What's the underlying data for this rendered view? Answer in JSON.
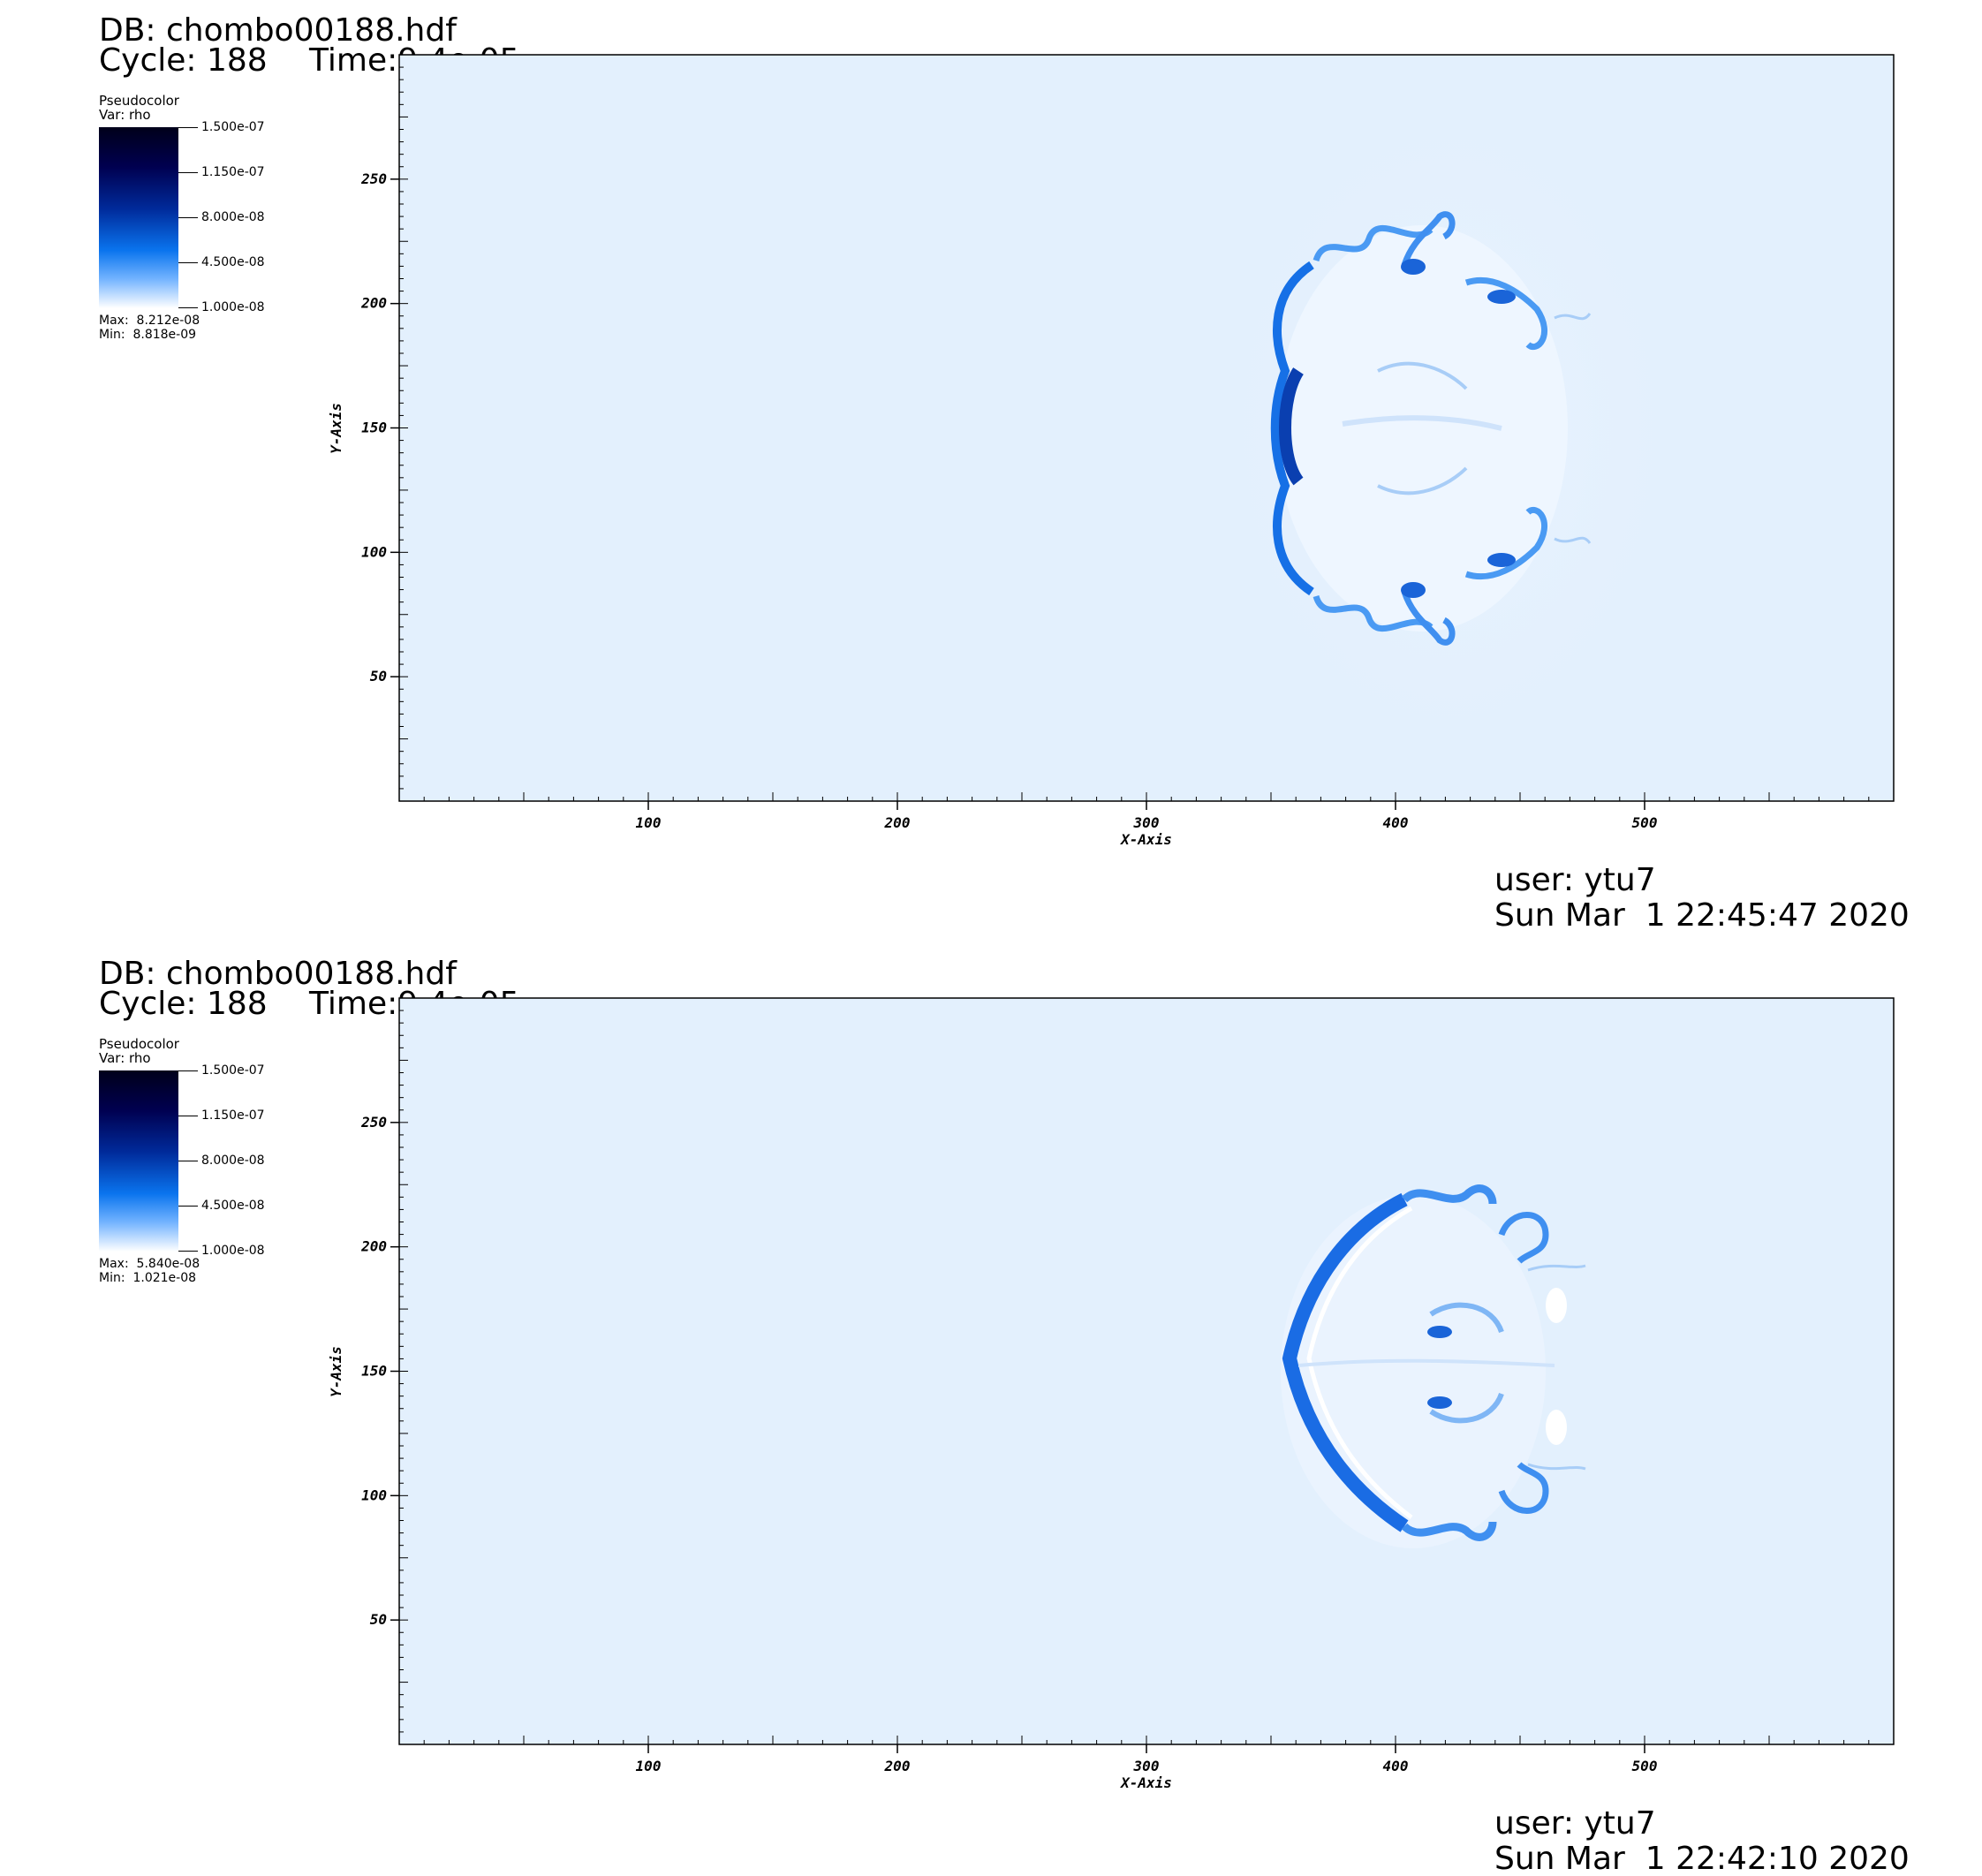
{
  "plots": [
    {
      "db_label": "DB: chombo00188.hdf",
      "cycle_label": "Cycle: 188",
      "time_label": "Time:9.4e-05",
      "legend": {
        "plot_type": "Pseudocolor",
        "var_label": "Var: rho",
        "ticks": [
          "1.500e-07",
          "1.150e-07",
          "8.000e-08",
          "4.500e-08",
          "1.000e-08"
        ],
        "max_label": "Max:  8.212e-08",
        "min_label": "Min:  8.818e-09"
      },
      "user_label": "user: ytu7",
      "date_label": "Sun Mar  1 22:45:47 2020",
      "chart_data": {
        "type": "heatmap",
        "variable": "rho",
        "xlabel": "X-Axis",
        "ylabel": "Y-Axis",
        "xlim": [
          0,
          600
        ],
        "ylim": [
          0,
          300
        ],
        "xticks": [
          100,
          200,
          300,
          400,
          500
        ],
        "yticks": [
          50,
          100,
          150,
          200,
          250
        ],
        "colorbar_range": [
          1e-08,
          1.5e-07
        ],
        "data_max": 8.212e-08,
        "data_min": 8.818e-09
      }
    },
    {
      "db_label": "DB: chombo00188.hdf",
      "cycle_label": "Cycle: 188",
      "time_label": "Time:9.4e-05",
      "legend": {
        "plot_type": "Pseudocolor",
        "var_label": "Var: rho",
        "ticks": [
          "1.500e-07",
          "1.150e-07",
          "8.000e-08",
          "4.500e-08",
          "1.000e-08"
        ],
        "max_label": "Max:  5.840e-08",
        "min_label": "Min:  1.021e-08"
      },
      "user_label": "user: ytu7",
      "date_label": "Sun Mar  1 22:42:10 2020",
      "chart_data": {
        "type": "heatmap",
        "variable": "rho",
        "xlabel": "X-Axis",
        "ylabel": "Y-Axis",
        "xlim": [
          0,
          600
        ],
        "ylim": [
          0,
          300
        ],
        "xticks": [
          100,
          200,
          300,
          400,
          500
        ],
        "yticks": [
          50,
          100,
          150,
          200,
          250
        ],
        "colorbar_range": [
          1e-08,
          1.5e-07
        ],
        "data_max": 5.84e-08,
        "data_min": 1.021e-08
      }
    }
  ]
}
